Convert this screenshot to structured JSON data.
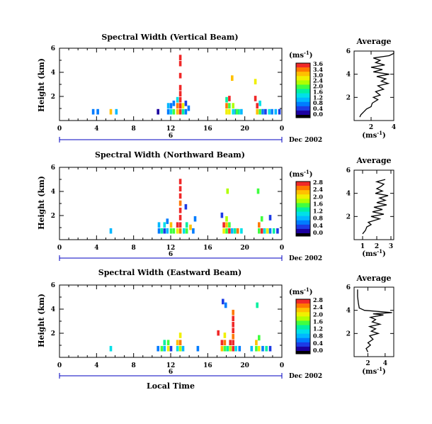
{
  "common": {
    "x_axis_label": "Local Time",
    "y_axis_label": "Height (km)",
    "units_label": "(ms",
    "units_exponent": "-1",
    "units_close": ")",
    "date_label": "Dec 2002",
    "day_label": "6",
    "average_title": "Average",
    "x_ticks": [
      "0",
      "4",
      "8",
      "12",
      "16",
      "20",
      "0"
    ],
    "y_ticks": [
      "2",
      "4",
      "6"
    ],
    "colormap": [
      "#1c00a0",
      "#1c3ce6",
      "#007cff",
      "#00b8ff",
      "#00e0e8",
      "#00f0a0",
      "#40ff40",
      "#b0ff00",
      "#f0f000",
      "#ffc000",
      "#ff7800",
      "#f02828"
    ]
  },
  "chart_data": [
    {
      "type": "heatmap",
      "title": "Spectral Width (Vertical Beam)",
      "xlim": [
        0,
        24
      ],
      "ylim": [
        0,
        6
      ],
      "colorbar_ticks": [
        "3.6",
        "3.4",
        "3.0",
        "2.4",
        "2.0",
        "1.6",
        "1.2",
        "0.8",
        "0.4",
        "0.0"
      ],
      "color_range": [
        0,
        3.6
      ],
      "cells": [
        [
          3.5,
          0.5,
          0.6
        ],
        [
          4.0,
          0.5,
          0.8
        ],
        [
          5.4,
          0.5,
          2.8
        ],
        [
          6.0,
          0.5,
          1.0
        ],
        [
          10.5,
          0.5,
          0.2
        ],
        [
          11.6,
          0.5,
          0.6
        ],
        [
          11.6,
          1.0,
          1.0
        ],
        [
          11.9,
          0.5,
          1.4
        ],
        [
          11.9,
          1.0,
          0.8
        ],
        [
          12.2,
          0.5,
          1.8
        ],
        [
          12.2,
          1.2,
          0.6
        ],
        [
          12.6,
          0.5,
          2.8
        ],
        [
          12.6,
          1.0,
          3.0
        ],
        [
          12.6,
          1.5,
          1.2
        ],
        [
          12.9,
          0.5,
          3.4
        ],
        [
          12.9,
          1.0,
          3.6
        ],
        [
          12.9,
          1.5,
          3.4
        ],
        [
          12.9,
          2.0,
          3.6
        ],
        [
          12.9,
          2.5,
          3.4
        ],
        [
          12.9,
          3.5,
          3.6
        ],
        [
          12.9,
          4.5,
          3.6
        ],
        [
          12.9,
          5.0,
          3.6
        ],
        [
          13.2,
          0.5,
          1.6
        ],
        [
          13.2,
          1.0,
          2.4
        ],
        [
          13.5,
          0.5,
          0.8
        ],
        [
          13.5,
          1.2,
          0.4
        ],
        [
          13.8,
          0.8,
          0.6
        ],
        [
          17.9,
          0.5,
          2.4
        ],
        [
          17.9,
          1.0,
          3.0
        ],
        [
          17.9,
          1.5,
          1.6
        ],
        [
          18.2,
          0.5,
          2.6
        ],
        [
          18.2,
          1.0,
          1.8
        ],
        [
          18.2,
          1.6,
          3.4
        ],
        [
          18.6,
          0.5,
          1.2
        ],
        [
          18.6,
          1.0,
          2.2
        ],
        [
          18.9,
          0.5,
          0.6
        ],
        [
          19.2,
          0.5,
          1.6
        ],
        [
          19.5,
          0.5,
          1.0
        ],
        [
          18.5,
          3.3,
          2.8
        ],
        [
          19.0,
          0.5,
          2.0
        ],
        [
          21.2,
          0.5,
          2.8
        ],
        [
          21.2,
          1.0,
          3.4
        ],
        [
          21.5,
          0.5,
          1.8
        ],
        [
          21.5,
          1.2,
          1.2
        ],
        [
          21.8,
          0.5,
          0.8
        ],
        [
          22.1,
          0.5,
          0.4
        ],
        [
          22.5,
          0.5,
          1.4
        ],
        [
          22.8,
          0.5,
          0.6
        ],
        [
          23.2,
          0.5,
          1.0
        ],
        [
          23.6,
          0.5,
          0.4
        ],
        [
          21.0,
          3.0,
          2.6
        ],
        [
          21.0,
          1.6,
          3.6
        ]
      ],
      "average": {
        "xlim": [
          0.5,
          4
        ],
        "ylim": [
          0,
          6
        ],
        "x_ticks": [
          "2",
          "4"
        ],
        "x_tick_values": [
          2,
          4
        ],
        "y_tick_values": [
          2,
          4,
          6
        ],
        "y_tick_labels": [
          "2",
          "4",
          "6"
        ],
        "xlabel": "(ms",
        "profile": [
          [
            1.0,
            0.3
          ],
          [
            1.1,
            0.5
          ],
          [
            1.4,
            0.8
          ],
          [
            1.6,
            1.0
          ],
          [
            2.0,
            1.2
          ],
          [
            2.1,
            1.5
          ],
          [
            2.6,
            1.8
          ],
          [
            2.2,
            2.0
          ],
          [
            2.8,
            2.2
          ],
          [
            2.4,
            2.5
          ],
          [
            3.1,
            2.7
          ],
          [
            2.6,
            3.0
          ],
          [
            3.5,
            3.2
          ],
          [
            2.9,
            3.4
          ],
          [
            3.3,
            3.6
          ],
          [
            2.5,
            3.8
          ],
          [
            3.6,
            4.0
          ],
          [
            2.2,
            4.2
          ],
          [
            3.0,
            4.4
          ],
          [
            2.0,
            4.6
          ],
          [
            3.2,
            4.8
          ],
          [
            2.4,
            5.0
          ],
          [
            2.8,
            5.2
          ],
          [
            2.2,
            5.4
          ],
          [
            3.6,
            5.6
          ],
          [
            4.0,
            5.8
          ],
          [
            4.0,
            6.0
          ]
        ]
      }
    },
    {
      "type": "heatmap",
      "title": "Spectral Width (Northward Beam)",
      "xlim": [
        0,
        24
      ],
      "ylim": [
        0,
        6
      ],
      "colorbar_ticks": [
        "2.8",
        "2.4",
        "2.0",
        "1.6",
        "1.2",
        "0.8",
        "0.4",
        "0.0"
      ],
      "color_range": [
        0,
        2.8
      ],
      "cells": [
        [
          5.4,
          0.5,
          0.8
        ],
        [
          10.6,
          0.5,
          0.6
        ],
        [
          10.6,
          1.0,
          0.8
        ],
        [
          10.9,
          0.5,
          1.2
        ],
        [
          11.2,
          0.5,
          0.4
        ],
        [
          11.2,
          1.0,
          1.0
        ],
        [
          11.5,
          0.5,
          0.8
        ],
        [
          11.5,
          1.3,
          0.6
        ],
        [
          11.9,
          0.5,
          1.4
        ],
        [
          11.9,
          1.0,
          2.2
        ],
        [
          12.2,
          0.5,
          1.6
        ],
        [
          12.6,
          0.5,
          2.0
        ],
        [
          12.6,
          1.0,
          2.8
        ],
        [
          12.9,
          0.5,
          2.4
        ],
        [
          12.9,
          1.0,
          2.8
        ],
        [
          12.9,
          1.6,
          2.6
        ],
        [
          12.9,
          2.2,
          2.8
        ],
        [
          12.9,
          2.8,
          2.4
        ],
        [
          12.9,
          3.4,
          2.8
        ],
        [
          12.9,
          4.0,
          2.6
        ],
        [
          12.9,
          4.6,
          2.8
        ],
        [
          13.3,
          0.5,
          1.0
        ],
        [
          13.6,
          0.5,
          1.6
        ],
        [
          13.6,
          1.0,
          1.2
        ],
        [
          14.0,
          0.8,
          2.2
        ],
        [
          14.3,
          0.5,
          0.6
        ],
        [
          13.5,
          2.5,
          0.4
        ],
        [
          14.5,
          1.5,
          0.6
        ],
        [
          17.6,
          0.5,
          2.0
        ],
        [
          17.6,
          1.0,
          2.6
        ],
        [
          17.9,
          0.5,
          1.4
        ],
        [
          17.9,
          1.0,
          2.2
        ],
        [
          17.9,
          1.5,
          1.8
        ],
        [
          18.2,
          0.5,
          2.8
        ],
        [
          18.2,
          1.0,
          1.6
        ],
        [
          18.5,
          0.5,
          0.8
        ],
        [
          18.8,
          0.5,
          1.2
        ],
        [
          19.1,
          0.5,
          2.4
        ],
        [
          19.5,
          0.5,
          1.0
        ],
        [
          18.0,
          3.8,
          1.8
        ],
        [
          17.4,
          1.8,
          0.4
        ],
        [
          21.4,
          0.5,
          1.6
        ],
        [
          21.4,
          1.0,
          2.4
        ],
        [
          21.7,
          0.5,
          2.8
        ],
        [
          21.7,
          1.5,
          1.4
        ],
        [
          22.0,
          0.5,
          1.0
        ],
        [
          22.3,
          0.5,
          2.0
        ],
        [
          22.6,
          0.5,
          0.6
        ],
        [
          23.0,
          0.5,
          1.2
        ],
        [
          23.4,
          0.5,
          0.4
        ],
        [
          21.3,
          3.8,
          1.4
        ],
        [
          22.6,
          1.6,
          0.4
        ]
      ],
      "average": {
        "xlim": [
          0.4,
          3.2
        ],
        "ylim": [
          0,
          6
        ],
        "x_ticks": [
          "1",
          "2",
          "3"
        ],
        "x_tick_values": [
          1,
          2,
          3
        ],
        "y_tick_values": [
          2,
          4,
          6
        ],
        "y_tick_labels": [
          "2",
          "4",
          "6"
        ],
        "xlabel": "(ms",
        "profile": [
          [
            1.0,
            0.5
          ],
          [
            1.2,
            0.8
          ],
          [
            1.3,
            1.1
          ],
          [
            1.6,
            1.3
          ],
          [
            1.4,
            1.5
          ],
          [
            2.2,
            1.8
          ],
          [
            1.6,
            2.0
          ],
          [
            2.5,
            2.2
          ],
          [
            1.7,
            2.4
          ],
          [
            2.4,
            2.6
          ],
          [
            1.8,
            2.8
          ],
          [
            2.7,
            3.0
          ],
          [
            2.0,
            3.2
          ],
          [
            2.6,
            3.4
          ],
          [
            2.2,
            3.6
          ],
          [
            2.8,
            3.8
          ],
          [
            1.9,
            4.0
          ],
          [
            2.4,
            4.2
          ],
          [
            2.0,
            4.4
          ],
          [
            2.3,
            4.6
          ],
          [
            2.5,
            4.8
          ],
          [
            2.0,
            5.0
          ],
          [
            2.6,
            5.2
          ]
        ]
      }
    },
    {
      "type": "heatmap",
      "title": "Spectral Width (Eastward Beam)",
      "xlim": [
        0,
        24
      ],
      "ylim": [
        0,
        6
      ],
      "colorbar_ticks": [
        "2.8",
        "2.4",
        "2.0",
        "1.6",
        "1.2",
        "0.8",
        "0.4",
        "0.0"
      ],
      "color_range": [
        0,
        2.8
      ],
      "cells": [
        [
          5.4,
          0.5,
          1.0
        ],
        [
          10.5,
          0.5,
          0.6
        ],
        [
          10.9,
          0.5,
          1.4
        ],
        [
          11.2,
          0.5,
          0.8
        ],
        [
          11.2,
          1.0,
          1.2
        ],
        [
          11.6,
          0.5,
          2.0
        ],
        [
          11.6,
          1.0,
          1.6
        ],
        [
          11.9,
          0.5,
          0.4
        ],
        [
          12.6,
          0.5,
          1.0
        ],
        [
          12.6,
          1.0,
          2.2
        ],
        [
          12.9,
          0.5,
          1.8
        ],
        [
          12.9,
          1.0,
          2.4
        ],
        [
          12.9,
          1.6,
          2.0
        ],
        [
          13.2,
          0.5,
          0.8
        ],
        [
          14.8,
          0.5,
          0.6
        ],
        [
          17.4,
          0.5,
          2.2
        ],
        [
          17.4,
          1.0,
          2.8
        ],
        [
          17.7,
          0.5,
          1.6
        ],
        [
          17.7,
          1.0,
          2.4
        ],
        [
          17.7,
          1.6,
          2.0
        ],
        [
          18.0,
          0.5,
          1.2
        ],
        [
          18.3,
          0.5,
          1.8
        ],
        [
          18.3,
          1.0,
          2.6
        ],
        [
          18.6,
          0.5,
          2.8
        ],
        [
          18.6,
          1.0,
          2.8
        ],
        [
          18.6,
          1.5,
          2.4
        ],
        [
          18.6,
          2.0,
          2.8
        ],
        [
          18.6,
          2.5,
          2.6
        ],
        [
          18.6,
          3.0,
          2.8
        ],
        [
          18.6,
          3.5,
          2.4
        ],
        [
          18.9,
          0.5,
          1.0
        ],
        [
          19.3,
          0.5,
          0.6
        ],
        [
          17.5,
          4.4,
          0.3
        ],
        [
          17.8,
          4.1,
          0.5
        ],
        [
          17.0,
          1.8,
          2.6
        ],
        [
          20.6,
          0.5,
          0.8
        ],
        [
          21.1,
          0.5,
          1.4
        ],
        [
          21.1,
          1.0,
          2.2
        ],
        [
          21.4,
          0.5,
          2.0
        ],
        [
          21.4,
          1.4,
          1.6
        ],
        [
          21.8,
          0.5,
          0.6
        ],
        [
          22.2,
          0.5,
          1.2
        ],
        [
          22.6,
          0.5,
          0.4
        ],
        [
          21.2,
          4.1,
          1.2
        ]
      ],
      "average": {
        "xlim": [
          0.4,
          5.0
        ],
        "ylim": [
          0,
          6
        ],
        "x_ticks": [
          "2",
          "4"
        ],
        "x_tick_values": [
          2,
          4
        ],
        "y_tick_values": [
          2,
          4,
          6
        ],
        "y_tick_labels": [
          "2",
          "4",
          "6"
        ],
        "xlabel": "(ms",
        "profile": [
          [
            2.0,
            0.4
          ],
          [
            1.8,
            0.7
          ],
          [
            2.3,
            1.0
          ],
          [
            2.0,
            1.2
          ],
          [
            2.6,
            1.5
          ],
          [
            2.2,
            1.8
          ],
          [
            3.2,
            2.0
          ],
          [
            2.4,
            2.2
          ],
          [
            2.9,
            2.4
          ],
          [
            2.2,
            2.6
          ],
          [
            3.4,
            2.8
          ],
          [
            2.5,
            3.0
          ],
          [
            2.9,
            3.2
          ],
          [
            2.3,
            3.4
          ],
          [
            3.8,
            3.6
          ],
          [
            2.6,
            3.7
          ],
          [
            4.8,
            3.8
          ],
          [
            1.6,
            4.0
          ],
          [
            1.0,
            4.2
          ],
          [
            0.9,
            4.6
          ],
          [
            0.8,
            5.2
          ],
          [
            0.8,
            5.8
          ]
        ]
      }
    }
  ]
}
